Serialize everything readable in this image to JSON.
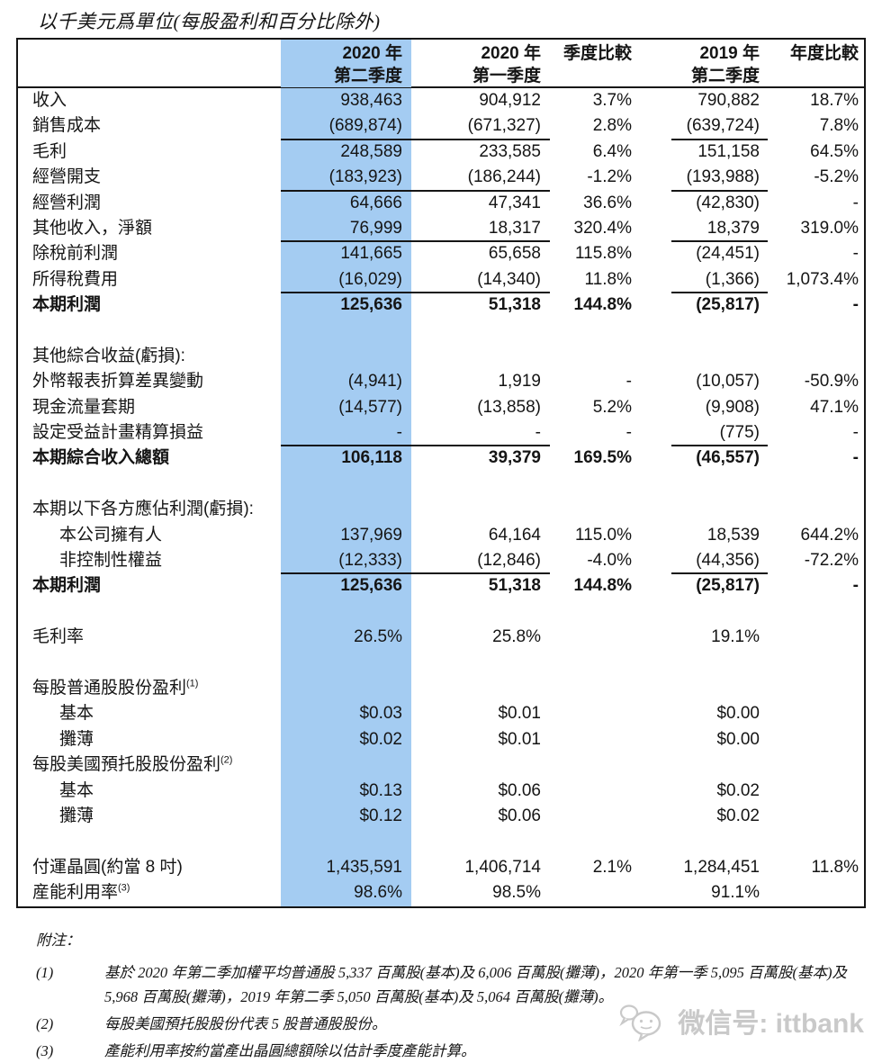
{
  "title": "以千美元爲單位(每股盈利和百分比除外)",
  "colors": {
    "highlight_column_blue": "#A4CCF2",
    "table_border_black": "#151515",
    "watermark_gray": "#c9c9c9"
  },
  "table": {
    "header": {
      "col_label": {
        "line1": "",
        "line2": ""
      },
      "col_q2_2020": {
        "line1": "2020 年",
        "line2": "第二季度",
        "highlighted": true
      },
      "col_q1_2020": {
        "line1": "2020 年",
        "line2": "第一季度"
      },
      "col_qoq": {
        "line1": "季度比較",
        "line2": ""
      },
      "col_q2_2019": {
        "line1": "2019 年",
        "line2": "第二季度"
      },
      "col_yoy": {
        "line1": "年度比較",
        "line2": ""
      }
    },
    "rows": [
      {
        "label": "收入",
        "values": [
          "938,463",
          "904,912",
          "3.7%",
          "790,882",
          "18.7%"
        ]
      },
      {
        "label": "銷售成本",
        "values": [
          "(689,874)",
          "(671,327)",
          "2.8%",
          "(639,724)",
          "7.8%"
        ]
      },
      {
        "label": "毛利",
        "line_above": true,
        "values": [
          "248,589",
          "233,585",
          "6.4%",
          "151,158",
          "64.5%"
        ]
      },
      {
        "label": "經營開支",
        "values": [
          "(183,923)",
          "(186,244)",
          "-1.2%",
          "(193,988)",
          "-5.2%"
        ]
      },
      {
        "label": "經營利潤",
        "line_above": true,
        "values": [
          "64,666",
          "47,341",
          "36.6%",
          "(42,830)",
          "-"
        ]
      },
      {
        "label": "其他收入，淨額",
        "values": [
          "76,999",
          "18,317",
          "320.4%",
          "18,379",
          "319.0%"
        ]
      },
      {
        "label": "除稅前利潤",
        "line_above": true,
        "values": [
          "141,665",
          "65,658",
          "115.8%",
          "(24,451)",
          "-"
        ]
      },
      {
        "label": "所得稅費用",
        "values": [
          "(16,029)",
          "(14,340)",
          "11.8%",
          "(1,366)",
          "1,073.4%"
        ]
      },
      {
        "label": "本期利潤",
        "bold": true,
        "line_above": true,
        "values": [
          "125,636",
          "51,318",
          "144.8%",
          "(25,817)",
          "-"
        ]
      },
      {
        "type": "spacer"
      },
      {
        "label": "其他綜合收益(虧損):",
        "values": [
          "",
          "",
          "",
          "",
          ""
        ]
      },
      {
        "label": "外幣報表折算差異變動",
        "values": [
          "(4,941)",
          "1,919",
          "-",
          "(10,057)",
          "-50.9%"
        ]
      },
      {
        "label": "現金流量套期",
        "values": [
          "(14,577)",
          "(13,858)",
          "5.2%",
          "(9,908)",
          "47.1%"
        ]
      },
      {
        "label": "設定受益計畫精算損益",
        "values": [
          "-",
          "-",
          "-",
          "(775)",
          "-"
        ]
      },
      {
        "label": "本期綜合收入總額",
        "bold": true,
        "line_above": true,
        "values": [
          "106,118",
          "39,379",
          "169.5%",
          "(46,557)",
          "-"
        ]
      },
      {
        "type": "spacer"
      },
      {
        "label": "本期以下各方應佔利潤(虧損):",
        "values": [
          "",
          "",
          "",
          "",
          ""
        ]
      },
      {
        "label": "本公司擁有人",
        "indent": true,
        "values": [
          "137,969",
          "64,164",
          "115.0%",
          "18,539",
          "644.2%"
        ]
      },
      {
        "label": "非控制性權益",
        "indent": true,
        "values": [
          "(12,333)",
          "(12,846)",
          "-4.0%",
          "(44,356)",
          "-72.2%"
        ]
      },
      {
        "label": "本期利潤",
        "bold": true,
        "line_above": true,
        "values": [
          "125,636",
          "51,318",
          "144.8%",
          "(25,817)",
          "-"
        ]
      },
      {
        "type": "spacer"
      },
      {
        "label": "毛利率",
        "values": [
          "26.5%",
          "25.8%",
          "",
          "19.1%",
          ""
        ]
      },
      {
        "type": "spacer"
      },
      {
        "label": "每股普通股股份盈利",
        "sup": "(1)",
        "values": [
          "",
          "",
          "",
          "",
          ""
        ]
      },
      {
        "label": "基本",
        "indent": true,
        "values": [
          "$0.03",
          "$0.01",
          "",
          "$0.00",
          ""
        ]
      },
      {
        "label": "攤薄",
        "indent": true,
        "values": [
          "$0.02",
          "$0.01",
          "",
          "$0.00",
          ""
        ]
      },
      {
        "label": "每股美國預托股股份盈利",
        "sup": "(2)",
        "values": [
          "",
          "",
          "",
          "",
          ""
        ]
      },
      {
        "label": "基本",
        "indent": true,
        "values": [
          "$0.13",
          "$0.06",
          "",
          "$0.02",
          ""
        ]
      },
      {
        "label": "攤薄",
        "indent": true,
        "values": [
          "$0.12",
          "$0.06",
          "",
          "$0.02",
          ""
        ]
      },
      {
        "type": "spacer"
      },
      {
        "label": "付運晶圓(約當 8 吋)",
        "values": [
          "1,435,591",
          "1,406,714",
          "2.1%",
          "1,284,451",
          "11.8%"
        ]
      },
      {
        "label": "産能利用率",
        "sup": "(3)",
        "values": [
          "98.6%",
          "98.5%",
          "",
          "91.1%",
          ""
        ]
      }
    ]
  },
  "footnotes": {
    "heading": "附注：",
    "items": [
      {
        "marker": "(1)",
        "text": "基於 2020 年第二季加權平均普通股 5,337 百萬股(基本)及 6,006 百萬股(攤薄)，2020 年第一季 5,095 百萬股(基本)及 5,968 百萬股(攤薄)，2019 年第二季 5,050 百萬股(基本)及 5,064 百萬股(攤薄)。"
      },
      {
        "marker": "(2)",
        "text": "每股美國預托股股份代表 5 股普通股股份。"
      },
      {
        "marker": "(3)",
        "text": "產能利用率按約當產出晶圓總額除以估計季度產能計算。"
      }
    ]
  },
  "watermark": {
    "label": "微信号: ittbank",
    "icon": "wechat-icon"
  }
}
